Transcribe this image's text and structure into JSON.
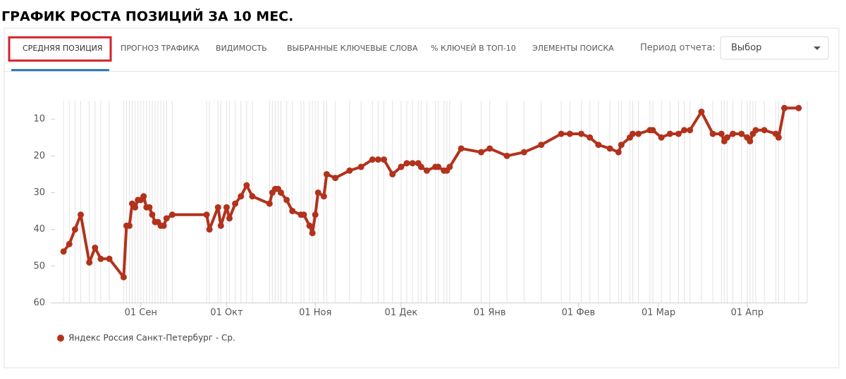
{
  "header": {
    "title": "ГРАФИК РОСТА ПОЗИЦИЙ ЗА 10 МЕС."
  },
  "tabs": [
    "СРЕДНЯЯ ПОЗИЦИЯ",
    "ПРОГНОЗ ТРАФИКА",
    "ВИДИМОСТЬ",
    "ВЫБРАННЫЕ КЛЮЧЕВЫЕ СЛОВА",
    "% КЛЮЧЕЙ В ТОП-10",
    "ЭЛЕМЕНТЫ ПОИСКА"
  ],
  "period": {
    "label": "Период отчета:",
    "dropdown": "Выбор"
  },
  "chart_data": {
    "type": "line",
    "x": [
      "08-05",
      "08-07",
      "08-09",
      "08-11",
      "08-14",
      "08-16",
      "08-18",
      "08-21",
      "08-26",
      "08-27",
      "08-28",
      "08-29",
      "08-30",
      "08-31",
      "09-01",
      "09-02",
      "09-03",
      "09-04",
      "09-05",
      "09-06",
      "09-07",
      "09-08",
      "09-09",
      "09-10",
      "09-12",
      "09-24",
      "09-25",
      "09-28",
      "09-29",
      "10-01",
      "10-02",
      "10-04",
      "10-06",
      "10-08",
      "10-10",
      "10-16",
      "10-17",
      "10-18",
      "10-19",
      "10-20",
      "10-22",
      "10-24",
      "10-27",
      "10-28",
      "10-30",
      "10-31",
      "11-01",
      "11-02",
      "11-04",
      "11-05",
      "11-08",
      "11-13",
      "11-17",
      "11-21",
      "11-23",
      "11-25",
      "11-28",
      "12-01",
      "12-03",
      "12-05",
      "12-07",
      "12-08",
      "12-10",
      "12-13",
      "12-14",
      "12-16",
      "12-17",
      "12-18",
      "12-22",
      "12-29",
      "01-01",
      "01-07",
      "01-13",
      "01-19",
      "01-26",
      "01-29",
      "02-02",
      "02-05",
      "02-08",
      "02-12",
      "02-15",
      "02-16",
      "02-19",
      "02-20",
      "02-22",
      "02-26",
      "02-27",
      "03-02",
      "03-05",
      "03-08",
      "03-10",
      "03-12",
      "03-16",
      "03-20",
      "03-23",
      "03-24",
      "03-25",
      "03-27",
      "03-30",
      "04-01",
      "04-02",
      "04-03",
      "04-04",
      "04-07",
      "04-11",
      "04-12",
      "04-14",
      "04-19"
    ],
    "series": [
      {
        "name": "Яндекс Россия Санкт-Петербург - Ср.",
        "color": "#b2321c",
        "values": [
          46,
          44,
          40,
          36,
          49,
          45,
          48,
          48,
          53,
          39,
          39,
          33,
          34,
          32,
          32,
          31,
          34,
          34,
          36,
          38,
          38,
          39,
          39,
          37,
          36,
          36,
          40,
          34,
          39,
          34,
          37,
          33,
          31,
          28,
          31,
          33,
          30,
          29,
          29,
          30,
          32,
          35,
          36,
          36,
          39,
          41,
          36,
          30,
          31,
          25,
          26,
          24,
          23,
          21,
          21,
          21,
          25,
          23,
          22,
          22,
          22,
          23,
          24,
          23,
          23,
          24,
          24,
          23,
          18,
          19,
          18,
          20,
          19,
          17,
          14,
          14,
          14,
          15,
          17,
          18,
          19,
          17,
          15,
          14,
          14,
          13,
          13,
          15,
          14,
          14,
          13,
          13,
          8,
          14,
          14,
          16,
          15,
          14,
          14,
          15,
          16,
          14,
          13,
          13,
          14,
          15,
          7,
          7
        ]
      }
    ],
    "xlim": [
      "08-02",
      "04-22"
    ],
    "xticks": [
      {
        "value": "09-01",
        "label": "01 Сен"
      },
      {
        "value": "10-01",
        "label": "01 Окт"
      },
      {
        "value": "11-01",
        "label": "01 Ноя"
      },
      {
        "value": "12-01",
        "label": "01 Дек"
      },
      {
        "value": "01-01",
        "label": "01 Янв"
      },
      {
        "value": "02-01",
        "label": "01 Фев"
      },
      {
        "value": "03-01",
        "label": "01 Мар"
      },
      {
        "value": "04-01",
        "label": "01 Апр"
      }
    ],
    "ylim": [
      60,
      5
    ],
    "yticks": [
      10,
      20,
      30,
      40,
      50,
      60
    ],
    "grid": true
  }
}
